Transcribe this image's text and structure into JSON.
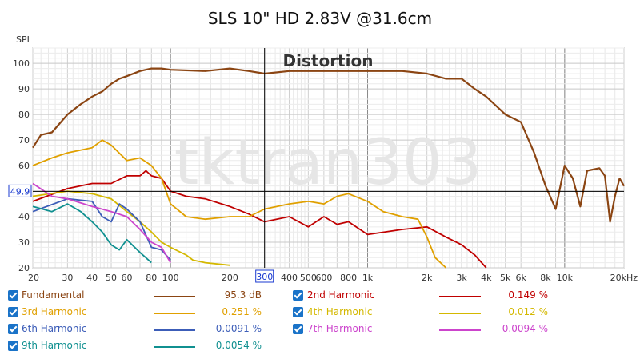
{
  "chart_data": {
    "type": "line",
    "title": "SLS 10\" HD 2.83V @31.6cm",
    "ylabel": "SPL",
    "xlabel": "",
    "annotation": "Distortion",
    "watermark": "tktran303",
    "xscale": "log",
    "xlim": [
      20,
      20000
    ],
    "ylim": [
      20,
      106
    ],
    "yticks": [
      20,
      30,
      40,
      50,
      60,
      70,
      80,
      90,
      100
    ],
    "xticks": [
      {
        "v": 20,
        "label": "20"
      },
      {
        "v": 30,
        "label": "30"
      },
      {
        "v": 40,
        "label": "40"
      },
      {
        "v": 50,
        "label": "50"
      },
      {
        "v": 60,
        "label": "60"
      },
      {
        "v": 80,
        "label": "80"
      },
      {
        "v": 100,
        "label": "100"
      },
      {
        "v": 200,
        "label": "200"
      },
      {
        "v": 400,
        "label": "400"
      },
      {
        "v": 500,
        "label": "500"
      },
      {
        "v": 600,
        "label": "600"
      },
      {
        "v": 800,
        "label": "800"
      },
      {
        "v": 1000,
        "label": "1k"
      },
      {
        "v": 2000,
        "label": "2k"
      },
      {
        "v": 3000,
        "label": "3k"
      },
      {
        "v": 4000,
        "label": "4k"
      },
      {
        "v": 5000,
        "label": "5k"
      },
      {
        "v": 6000,
        "label": "6k"
      },
      {
        "v": 8000,
        "label": "8k"
      },
      {
        "v": 10000,
        "label": "10k"
      },
      {
        "v": 20000,
        "label": "20kHz"
      }
    ],
    "cursor": {
      "x": 300,
      "y": 49.9,
      "x_label": "300",
      "y_label": "49.9"
    },
    "series": [
      {
        "name": "Fundamental",
        "value": "95.3 dB",
        "color": "#8b4513",
        "points": [
          [
            20,
            67
          ],
          [
            22,
            72
          ],
          [
            25,
            73
          ],
          [
            30,
            80
          ],
          [
            35,
            84
          ],
          [
            40,
            87
          ],
          [
            45,
            89
          ],
          [
            50,
            92
          ],
          [
            55,
            94
          ],
          [
            60,
            95
          ],
          [
            70,
            97
          ],
          [
            80,
            98
          ],
          [
            90,
            98
          ],
          [
            100,
            97.5
          ],
          [
            150,
            97
          ],
          [
            200,
            98
          ],
          [
            250,
            97
          ],
          [
            300,
            96
          ],
          [
            400,
            97
          ],
          [
            500,
            97
          ],
          [
            700,
            97
          ],
          [
            1000,
            97
          ],
          [
            1500,
            97
          ],
          [
            2000,
            96
          ],
          [
            2500,
            94
          ],
          [
            3000,
            94
          ],
          [
            3500,
            90
          ],
          [
            4000,
            87
          ],
          [
            5000,
            80
          ],
          [
            6000,
            77
          ],
          [
            7000,
            65
          ],
          [
            8000,
            52
          ],
          [
            9000,
            43
          ],
          [
            10000,
            60
          ],
          [
            11000,
            55
          ],
          [
            12000,
            44
          ],
          [
            13000,
            58
          ],
          [
            15000,
            59
          ],
          [
            16000,
            56
          ],
          [
            17000,
            38
          ],
          [
            18000,
            48
          ],
          [
            19000,
            55
          ],
          [
            20000,
            52
          ]
        ]
      },
      {
        "name": "2nd Harmonic",
        "value": "0.149 %",
        "color": "#c00000",
        "points": [
          [
            20,
            46
          ],
          [
            30,
            51
          ],
          [
            40,
            53
          ],
          [
            50,
            53
          ],
          [
            60,
            56
          ],
          [
            70,
            56
          ],
          [
            75,
            58
          ],
          [
            80,
            56
          ],
          [
            90,
            55
          ],
          [
            100,
            50
          ],
          [
            120,
            48
          ],
          [
            150,
            47
          ],
          [
            200,
            44
          ],
          [
            250,
            41
          ],
          [
            300,
            38
          ],
          [
            400,
            40
          ],
          [
            500,
            36
          ],
          [
            600,
            40
          ],
          [
            700,
            37
          ],
          [
            800,
            38
          ],
          [
            1000,
            33
          ],
          [
            1500,
            35
          ],
          [
            2000,
            36
          ],
          [
            2500,
            32
          ],
          [
            3000,
            29
          ],
          [
            3500,
            25
          ],
          [
            4000,
            20
          ]
        ]
      },
      {
        "name": "3rd Harmonic",
        "value": "0.251 %",
        "color": "#e0a000",
        "points": [
          [
            20,
            60
          ],
          [
            25,
            63
          ],
          [
            30,
            65
          ],
          [
            40,
            67
          ],
          [
            45,
            70
          ],
          [
            50,
            68
          ],
          [
            60,
            62
          ],
          [
            70,
            63
          ],
          [
            80,
            60
          ],
          [
            90,
            55
          ],
          [
            100,
            45
          ],
          [
            120,
            40
          ],
          [
            150,
            39
          ],
          [
            200,
            40
          ],
          [
            250,
            40
          ],
          [
            300,
            43
          ],
          [
            400,
            45
          ],
          [
            500,
            46
          ],
          [
            600,
            45
          ],
          [
            700,
            48
          ],
          [
            800,
            49
          ],
          [
            1000,
            46
          ],
          [
            1200,
            42
          ],
          [
            1500,
            40
          ],
          [
            1800,
            39
          ],
          [
            2000,
            32
          ],
          [
            2200,
            24
          ],
          [
            2500,
            20
          ]
        ]
      },
      {
        "name": "4th Harmonic",
        "value": "0.012 %",
        "color": "#d4b800",
        "points": [
          [
            20,
            48
          ],
          [
            30,
            50
          ],
          [
            40,
            49
          ],
          [
            50,
            47
          ],
          [
            60,
            42
          ],
          [
            70,
            38
          ],
          [
            80,
            34
          ],
          [
            90,
            30
          ],
          [
            100,
            28
          ],
          [
            120,
            25
          ],
          [
            130,
            23
          ],
          [
            150,
            22
          ],
          [
            200,
            21
          ]
        ]
      },
      {
        "name": "6th Harmonic",
        "value": "0.0091 %",
        "color": "#3c5db8",
        "points": [
          [
            20,
            42
          ],
          [
            30,
            47
          ],
          [
            40,
            46
          ],
          [
            45,
            40
          ],
          [
            50,
            38
          ],
          [
            55,
            45
          ],
          [
            60,
            43
          ],
          [
            70,
            38
          ],
          [
            80,
            28
          ],
          [
            90,
            27
          ],
          [
            100,
            23
          ]
        ]
      },
      {
        "name": "7th Harmonic",
        "value": "0.0094 %",
        "color": "#cc44cc",
        "points": [
          [
            20,
            53
          ],
          [
            25,
            48
          ],
          [
            30,
            47
          ],
          [
            40,
            44
          ],
          [
            50,
            42
          ],
          [
            60,
            40
          ],
          [
            70,
            35
          ],
          [
            80,
            30
          ],
          [
            90,
            28
          ],
          [
            100,
            22
          ]
        ]
      },
      {
        "name": "9th Harmonic",
        "value": "0.0054 %",
        "color": "#109090",
        "points": [
          [
            20,
            44
          ],
          [
            25,
            42
          ],
          [
            30,
            45
          ],
          [
            35,
            42
          ],
          [
            40,
            38
          ],
          [
            45,
            34
          ],
          [
            50,
            29
          ],
          [
            55,
            27
          ],
          [
            60,
            31
          ],
          [
            70,
            26
          ],
          [
            80,
            22
          ]
        ]
      }
    ]
  }
}
